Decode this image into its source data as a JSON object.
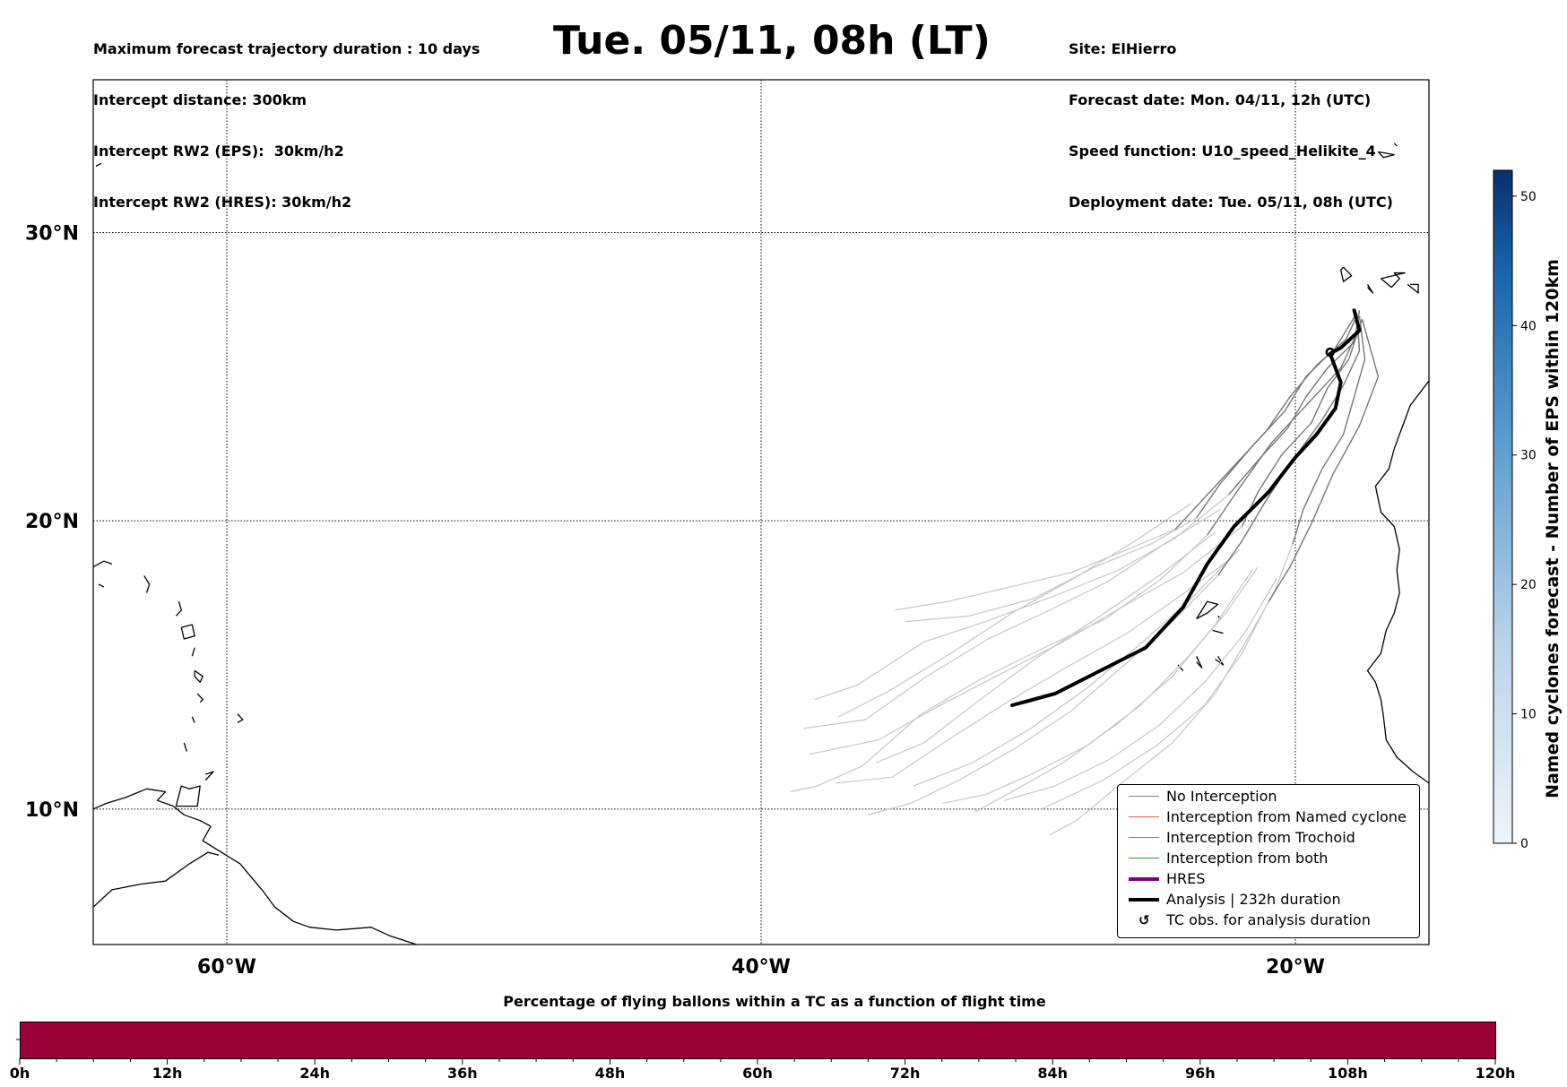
{
  "header": {
    "left_lines": [
      "Maximum forecast trajectory duration : 10 days",
      "Intercept distance: 300km",
      "Intercept RW2 (EPS):  30km/h2",
      "Intercept RW2 (HRES): 30km/h2"
    ],
    "title": "Tue. 05/11, 08h (LT)",
    "right_lines": [
      "Site: ElHierro",
      "Forecast date: Mon. 04/11, 12h (UTC)",
      "Speed function: U10_speed_Helikite_4",
      "Deployment date: Tue. 05/11, 08h (UTC)"
    ]
  },
  "map": {
    "lat_labels": [
      "30°N",
      "20°N",
      "10°N"
    ],
    "lon_labels": [
      "60°W",
      "40°W",
      "20°W"
    ],
    "lat_values": [
      30,
      20,
      10
    ],
    "lon_values": [
      -60,
      -40,
      -20
    ],
    "extent": {
      "lon_min": -65,
      "lon_max": -15,
      "lat_min": 5.3,
      "lat_max": 35.3
    },
    "site": {
      "name": "ElHierro",
      "lon": -18.0,
      "lat": 27.7
    }
  },
  "legend": [
    {
      "label": "No Interception",
      "color": "#808080",
      "kind": "line-thin"
    },
    {
      "label": "Interception from Named cyclone",
      "color": "#e8603c",
      "kind": "line-thin"
    },
    {
      "label": "Interception from Trochoid",
      "color": "#8b8b1a",
      "kind": "line-thin"
    },
    {
      "label": "Interception from both",
      "color": "#2ca02c",
      "kind": "line-thin"
    },
    {
      "label": "HRES",
      "color": "#800080",
      "kind": "line-thick"
    },
    {
      "label": "Analysis | 232h duration",
      "color": "#000000",
      "kind": "line-thick"
    },
    {
      "label": "TC obs. for analysis duration",
      "color": "#000000",
      "kind": "cyclone-symbol"
    }
  ],
  "colorbar": {
    "label": "Named cyclones forecast - Number of EPS within 120km",
    "ticks": [
      "0",
      "10",
      "20",
      "30",
      "40",
      "50"
    ],
    "min": 0,
    "max": 52,
    "color_low": "#eef4fb",
    "color_high": "#08306b"
  },
  "bottom": {
    "title": "Percentage of flying ballons within a TC as a function of flight time",
    "ticks": [
      "0h",
      "12h",
      "24h",
      "36h",
      "48h",
      "60h",
      "72h",
      "84h",
      "96h",
      "108h",
      "120h"
    ],
    "bar_color": "#9b0039"
  },
  "analysis_track": [
    [
      -17.8,
      27.3
    ],
    [
      -17.6,
      26.6
    ],
    [
      -18.3,
      26.0
    ],
    [
      -18.7,
      25.8
    ],
    [
      -18.3,
      24.8
    ],
    [
      -18.5,
      23.9
    ],
    [
      -19.2,
      23.0
    ],
    [
      -20.0,
      22.2
    ],
    [
      -21.0,
      21.0
    ],
    [
      -22.3,
      19.8
    ],
    [
      -23.3,
      18.5
    ],
    [
      -24.2,
      17.0
    ],
    [
      -25.6,
      15.6
    ],
    [
      -27.3,
      14.8
    ],
    [
      -29.0,
      14.0
    ],
    [
      -30.6,
      13.6
    ]
  ],
  "eps_dark_tracks": [
    [
      [
        -17.6,
        27.3
      ],
      [
        -17.8,
        26.2
      ],
      [
        -18.8,
        25.3
      ],
      [
        -19.6,
        24.3
      ],
      [
        -20.3,
        23.2
      ],
      [
        -21.3,
        22.2
      ],
      [
        -22.5,
        20.9
      ]
    ],
    [
      [
        -17.5,
        27.0
      ],
      [
        -18.0,
        25.6
      ],
      [
        -18.8,
        24.6
      ],
      [
        -19.4,
        23.4
      ],
      [
        -20.5,
        22.3
      ],
      [
        -21.4,
        21.0
      ],
      [
        -22.0,
        19.8
      ]
    ],
    [
      [
        -17.7,
        27.2
      ],
      [
        -18.5,
        26.0
      ],
      [
        -19.6,
        25.0
      ],
      [
        -20.4,
        23.8
      ],
      [
        -21.6,
        22.6
      ],
      [
        -22.8,
        21.3
      ],
      [
        -23.7,
        20.1
      ]
    ],
    [
      [
        -17.6,
        27.1
      ],
      [
        -17.4,
        25.6
      ],
      [
        -17.8,
        24.3
      ],
      [
        -18.2,
        23.0
      ],
      [
        -19.0,
        21.8
      ],
      [
        -19.7,
        20.4
      ],
      [
        -20.1,
        19.2
      ]
    ],
    [
      [
        -17.7,
        27.1
      ],
      [
        -18.1,
        26.3
      ],
      [
        -19.2,
        25.4
      ],
      [
        -20.2,
        24.3
      ],
      [
        -21.1,
        23.1
      ],
      [
        -22.3,
        21.9
      ],
      [
        -23.5,
        20.7
      ],
      [
        -24.5,
        19.7
      ]
    ],
    [
      [
        -17.5,
        27.0
      ],
      [
        -16.9,
        25.0
      ],
      [
        -17.6,
        23.3
      ],
      [
        -18.6,
        21.6
      ],
      [
        -19.4,
        19.9
      ],
      [
        -20.2,
        18.4
      ],
      [
        -21.0,
        17.2
      ]
    ],
    [
      [
        -17.6,
        26.7
      ],
      [
        -18.3,
        25.3
      ],
      [
        -19.5,
        24.1
      ],
      [
        -20.9,
        22.7
      ],
      [
        -22.2,
        21.0
      ],
      [
        -23.3,
        19.5
      ]
    ],
    [
      [
        -17.7,
        27.2
      ],
      [
        -17.6,
        25.9
      ],
      [
        -18.2,
        24.7
      ],
      [
        -19.0,
        23.5
      ],
      [
        -20.1,
        22.1
      ],
      [
        -21.1,
        20.7
      ],
      [
        -22.0,
        19.3
      ],
      [
        -22.9,
        18.1
      ]
    ]
  ],
  "eps_light_tracks": [
    [
      [
        -22.5,
        20.9
      ],
      [
        -24.5,
        19.4
      ],
      [
        -26.6,
        18.3
      ],
      [
        -29.0,
        17.4
      ],
      [
        -31.6,
        16.5
      ],
      [
        -33.9,
        15.8
      ],
      [
        -36.4,
        14.3
      ],
      [
        -38.0,
        13.8
      ]
    ],
    [
      [
        -22.0,
        19.8
      ],
      [
        -24.2,
        18.2
      ],
      [
        -26.5,
        17.0
      ],
      [
        -28.7,
        15.8
      ],
      [
        -31.0,
        14.7
      ],
      [
        -33.3,
        13.6
      ],
      [
        -35.6,
        12.4
      ],
      [
        -38.2,
        11.9
      ]
    ],
    [
      [
        -23.7,
        20.1
      ],
      [
        -25.4,
        19.2
      ],
      [
        -27.5,
        18.4
      ],
      [
        -29.8,
        17.3
      ],
      [
        -32.2,
        16.7
      ],
      [
        -34.6,
        16.5
      ]
    ],
    [
      [
        -20.1,
        19.2
      ],
      [
        -20.8,
        17.5
      ],
      [
        -21.8,
        15.9
      ],
      [
        -23.0,
        14.0
      ],
      [
        -24.6,
        12.3
      ],
      [
        -26.5,
        10.9
      ],
      [
        -28.2,
        9.6
      ],
      [
        -29.2,
        9.1
      ]
    ],
    [
      [
        -24.5,
        19.7
      ],
      [
        -26.3,
        19.0
      ],
      [
        -28.4,
        18.2
      ],
      [
        -30.7,
        17.7
      ],
      [
        -33.0,
        17.2
      ],
      [
        -35.0,
        16.9
      ]
    ],
    [
      [
        -21.0,
        17.2
      ],
      [
        -22.0,
        15.4
      ],
      [
        -23.4,
        13.6
      ],
      [
        -25.2,
        12.2
      ],
      [
        -27.2,
        11.0
      ],
      [
        -29.5,
        10.0
      ]
    ],
    [
      [
        -23.3,
        19.5
      ],
      [
        -25.0,
        18.0
      ],
      [
        -27.1,
        16.6
      ],
      [
        -29.4,
        15.6
      ],
      [
        -31.8,
        14.5
      ],
      [
        -34.0,
        13.3
      ],
      [
        -36.2,
        11.5
      ],
      [
        -37.9,
        10.8
      ],
      [
        -38.9,
        10.6
      ]
    ],
    [
      [
        -22.9,
        18.1
      ],
      [
        -24.6,
        16.5
      ],
      [
        -26.4,
        15.0
      ],
      [
        -28.4,
        13.4
      ],
      [
        -30.5,
        12.1
      ],
      [
        -32.6,
        11.0
      ],
      [
        -34.4,
        10.2
      ],
      [
        -36.0,
        9.8
      ]
    ],
    [
      [
        -22.8,
        20.4
      ],
      [
        -24.9,
        19.2
      ],
      [
        -27.0,
        17.9
      ],
      [
        -29.2,
        16.9
      ],
      [
        -31.5,
        15.9
      ],
      [
        -33.8,
        14.6
      ],
      [
        -36.1,
        13.1
      ],
      [
        -38.4,
        12.8
      ]
    ],
    [
      [
        -22.1,
        19.0
      ],
      [
        -23.9,
        17.3
      ],
      [
        -25.7,
        15.8
      ],
      [
        -27.8,
        14.2
      ],
      [
        -29.9,
        12.8
      ],
      [
        -32.1,
        11.6
      ],
      [
        -34.3,
        10.8
      ]
    ],
    [
      [
        -21.6,
        18.3
      ],
      [
        -23.0,
        16.4
      ],
      [
        -24.6,
        14.6
      ],
      [
        -26.6,
        13.0
      ],
      [
        -28.7,
        11.6
      ],
      [
        -30.6,
        10.6
      ],
      [
        -32.0,
        9.9
      ]
    ],
    [
      [
        -23.0,
        19.6
      ],
      [
        -25.1,
        18.1
      ],
      [
        -27.3,
        16.7
      ],
      [
        -29.6,
        15.3
      ],
      [
        -31.8,
        13.8
      ],
      [
        -33.9,
        12.3
      ],
      [
        -35.7,
        11.6
      ]
    ],
    [
      [
        -22.4,
        18.7
      ],
      [
        -24.3,
        17.4
      ],
      [
        -26.3,
        16.1
      ],
      [
        -28.6,
        14.9
      ],
      [
        -30.8,
        13.7
      ],
      [
        -33.0,
        12.4
      ],
      [
        -35.1,
        11.1
      ],
      [
        -37.2,
        10.9
      ]
    ],
    [
      [
        -20.7,
        18.0
      ],
      [
        -21.9,
        16.1
      ],
      [
        -23.4,
        14.4
      ],
      [
        -25.1,
        12.9
      ],
      [
        -27.0,
        11.7
      ],
      [
        -29.0,
        10.8
      ],
      [
        -30.9,
        10.3
      ]
    ],
    [
      [
        -21.4,
        18.4
      ],
      [
        -22.6,
        16.8
      ],
      [
        -24.1,
        15.2
      ],
      [
        -25.8,
        13.6
      ],
      [
        -27.8,
        12.2
      ],
      [
        -29.9,
        11.2
      ],
      [
        -31.6,
        10.5
      ],
      [
        -33.2,
        10.2
      ]
    ],
    [
      [
        -23.9,
        20.6
      ],
      [
        -26.0,
        19.3
      ],
      [
        -28.3,
        18.0
      ],
      [
        -30.6,
        16.8
      ],
      [
        -32.9,
        15.4
      ],
      [
        -35.2,
        14.1
      ],
      [
        -37.1,
        13.2
      ]
    ]
  ],
  "coastlines": [
    [
      [
        -65,
        18.4
      ],
      [
        -64.6,
        18.6
      ],
      [
        -64.3,
        18.5
      ]
    ],
    [
      [
        -64.8,
        17.8
      ],
      [
        -64.6,
        17.7
      ]
    ],
    [
      [
        -63.1,
        18.1
      ],
      [
        -62.9,
        17.8
      ],
      [
        -63.0,
        17.5
      ]
    ],
    [
      [
        -61.8,
        17.2
      ],
      [
        -61.7,
        16.9
      ],
      [
        -61.9,
        16.7
      ]
    ],
    [
      [
        -61.7,
        16.3
      ],
      [
        -61.3,
        16.4
      ],
      [
        -61.2,
        16.0
      ],
      [
        -61.6,
        15.9
      ],
      [
        -61.7,
        16.3
      ]
    ],
    [
      [
        -61.2,
        15.6
      ],
      [
        -61.3,
        15.3
      ]
    ],
    [
      [
        -61.2,
        14.8
      ],
      [
        -60.9,
        14.6
      ],
      [
        -61.0,
        14.4
      ],
      [
        -61.2,
        14.6
      ],
      [
        -61.2,
        14.8
      ]
    ],
    [
      [
        -61.1,
        14.0
      ],
      [
        -60.9,
        13.8
      ],
      [
        -61.0,
        13.7
      ]
    ],
    [
      [
        -61.3,
        13.2
      ],
      [
        -61.2,
        13.0
      ]
    ],
    [
      [
        -61.6,
        12.3
      ],
      [
        -61.5,
        12.0
      ]
    ],
    [
      [
        -59.6,
        13.3
      ],
      [
        -59.4,
        13.1
      ],
      [
        -59.6,
        13.0
      ]
    ],
    [
      [
        -60.8,
        11.2
      ],
      [
        -60.5,
        11.3
      ],
      [
        -60.8,
        11.0
      ]
    ],
    [
      [
        -61.7,
        10.8
      ],
      [
        -61.4,
        10.7
      ],
      [
        -61.0,
        10.8
      ],
      [
        -61.1,
        10.1
      ],
      [
        -61.9,
        10.1
      ],
      [
        -61.7,
        10.8
      ]
    ],
    [
      [
        -65,
        10.0
      ],
      [
        -64.5,
        10.2
      ],
      [
        -63.8,
        10.4
      ],
      [
        -63.0,
        10.7
      ],
      [
        -62.3,
        10.6
      ],
      [
        -62.6,
        10.3
      ],
      [
        -62.0,
        10.1
      ],
      [
        -61.6,
        9.8
      ],
      [
        -61.0,
        9.6
      ],
      [
        -60.6,
        9.4
      ],
      [
        -60.9,
        8.9
      ],
      [
        -60.2,
        8.5
      ],
      [
        -59.5,
        8.1
      ],
      [
        -58.6,
        7.1
      ],
      [
        -58.2,
        6.6
      ],
      [
        -57.5,
        6.1
      ],
      [
        -56.9,
        5.9
      ],
      [
        -55.9,
        5.8
      ],
      [
        -54.6,
        5.9
      ],
      [
        -53.9,
        5.6
      ],
      [
        -52.9,
        5.3
      ]
    ],
    [
      [
        -65,
        6.6
      ],
      [
        -64.3,
        7.2
      ],
      [
        -63.2,
        7.4
      ],
      [
        -62.3,
        7.5
      ],
      [
        -61.4,
        8.1
      ],
      [
        -60.7,
        8.5
      ],
      [
        -60.3,
        8.4
      ]
    ],
    [
      [
        -13.0,
        27.6
      ],
      [
        -13.2,
        27.0
      ],
      [
        -14.1,
        26.2
      ],
      [
        -14.8,
        25.1
      ],
      [
        -15.7,
        24.0
      ],
      [
        -15.9,
        23.5
      ],
      [
        -16.1,
        23.0
      ],
      [
        -16.3,
        22.5
      ],
      [
        -16.5,
        21.8
      ],
      [
        -17.0,
        21.2
      ],
      [
        -16.8,
        20.3
      ],
      [
        -16.3,
        19.8
      ],
      [
        -16.1,
        19.0
      ],
      [
        -16.2,
        18.3
      ],
      [
        -16.1,
        17.5
      ],
      [
        -16.3,
        16.8
      ],
      [
        -16.6,
        16.2
      ],
      [
        -16.8,
        15.4
      ],
      [
        -17.3,
        14.8
      ],
      [
        -17.0,
        14.4
      ],
      [
        -16.8,
        13.8
      ],
      [
        -16.7,
        13.2
      ],
      [
        -16.6,
        12.4
      ],
      [
        -16.2,
        11.8
      ],
      [
        -15.6,
        11.3
      ],
      [
        -15.0,
        10.9
      ]
    ],
    [
      [
        -15.0,
        10.9
      ],
      [
        -14.6,
        10.5
      ],
      [
        -14.0,
        9.9
      ]
    ],
    [
      [
        -18.2,
        28.8
      ],
      [
        -17.9,
        28.5
      ],
      [
        -18.2,
        28.3
      ],
      [
        -18.3,
        28.7
      ],
      [
        -18.2,
        28.8
      ]
    ],
    [
      [
        -17.3,
        28.2
      ],
      [
        -17.1,
        27.9
      ],
      [
        -17.3,
        28.1
      ]
    ],
    [
      [
        -16.8,
        28.4
      ],
      [
        -16.4,
        28.1
      ],
      [
        -16.1,
        28.4
      ],
      [
        -16.3,
        28.6
      ],
      [
        -15.9,
        28.6
      ],
      [
        -16.8,
        28.4
      ]
    ],
    [
      [
        -15.8,
        28.2
      ],
      [
        -15.4,
        27.9
      ],
      [
        -15.4,
        28.2
      ],
      [
        -15.7,
        28.2
      ]
    ],
    [
      [
        -14.5,
        28.6
      ],
      [
        -14.0,
        28.1
      ],
      [
        -13.8,
        28.4
      ],
      [
        -14.2,
        28.7
      ],
      [
        -14.5,
        28.6
      ]
    ],
    [
      [
        -13.8,
        29.0
      ],
      [
        -13.4,
        28.9
      ],
      [
        -13.5,
        29.2
      ],
      [
        -13.8,
        29.0
      ]
    ],
    [
      [
        -23.7,
        16.6
      ],
      [
        -23.3,
        16.8
      ],
      [
        -22.9,
        17.1
      ],
      [
        -23.3,
        17.2
      ],
      [
        -23.7,
        16.6
      ]
    ],
    [
      [
        -22.9,
        16.7
      ],
      [
        -22.8,
        16.6
      ]
    ],
    [
      [
        -23.1,
        16.2
      ],
      [
        -22.7,
        16.1
      ]
    ],
    [
      [
        -24.4,
        15.0
      ],
      [
        -24.2,
        14.8
      ]
    ],
    [
      [
        -23.7,
        15.1
      ],
      [
        -23.5,
        14.9
      ],
      [
        -23.7,
        15.3
      ]
    ],
    [
      [
        -23.0,
        15.2
      ],
      [
        -22.7,
        15.0
      ],
      [
        -22.9,
        15.3
      ]
    ],
    [
      [
        -16.9,
        32.8
      ],
      [
        -16.7,
        32.6
      ],
      [
        -16.3,
        32.7
      ],
      [
        -16.9,
        32.8
      ]
    ],
    [
      [
        -16.3,
        33.1
      ],
      [
        -16.2,
        33.0
      ]
    ],
    [
      [
        -64.9,
        32.3
      ],
      [
        -64.7,
        32.4
      ]
    ]
  ]
}
